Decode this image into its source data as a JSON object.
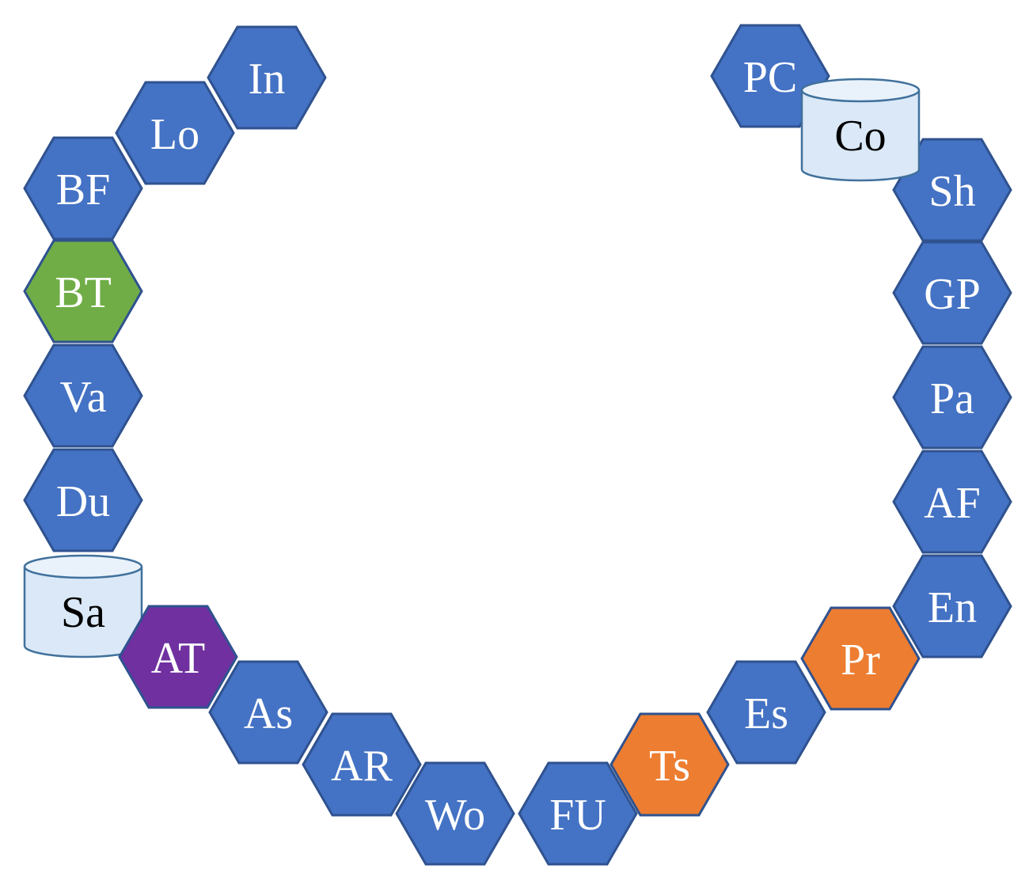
{
  "colors": {
    "blue": "#4472c4",
    "green": "#70ad47",
    "purple": "#7030a0",
    "orange": "#ed7d31",
    "database": "#dae8f7",
    "label_light": "#ffffff",
    "label_dark": "#000000"
  },
  "nodes": [
    {
      "id": "in",
      "label": "In",
      "shape": "hexagon",
      "color": "blue"
    },
    {
      "id": "lo",
      "label": "Lo",
      "shape": "hexagon",
      "color": "blue"
    },
    {
      "id": "bf",
      "label": "BF",
      "shape": "hexagon",
      "color": "blue"
    },
    {
      "id": "bt",
      "label": "BT",
      "shape": "hexagon",
      "color": "green"
    },
    {
      "id": "va",
      "label": "Va",
      "shape": "hexagon",
      "color": "blue"
    },
    {
      "id": "du",
      "label": "Du",
      "shape": "hexagon",
      "color": "blue"
    },
    {
      "id": "sa",
      "label": "Sa",
      "shape": "database",
      "color": "database"
    },
    {
      "id": "at",
      "label": "AT",
      "shape": "hexagon",
      "color": "purple"
    },
    {
      "id": "as",
      "label": "As",
      "shape": "hexagon",
      "color": "blue"
    },
    {
      "id": "ar",
      "label": "AR",
      "shape": "hexagon",
      "color": "blue"
    },
    {
      "id": "wo",
      "label": "Wo",
      "shape": "hexagon",
      "color": "blue"
    },
    {
      "id": "fu",
      "label": "FU",
      "shape": "hexagon",
      "color": "blue"
    },
    {
      "id": "ts",
      "label": "Ts",
      "shape": "hexagon",
      "color": "orange"
    },
    {
      "id": "es",
      "label": "Es",
      "shape": "hexagon",
      "color": "blue"
    },
    {
      "id": "pr",
      "label": "Pr",
      "shape": "hexagon",
      "color": "orange"
    },
    {
      "id": "en",
      "label": "En",
      "shape": "hexagon",
      "color": "blue"
    },
    {
      "id": "af",
      "label": "AF",
      "shape": "hexagon",
      "color": "blue"
    },
    {
      "id": "pa",
      "label": "Pa",
      "shape": "hexagon",
      "color": "blue"
    },
    {
      "id": "gp",
      "label": "GP",
      "shape": "hexagon",
      "color": "blue"
    },
    {
      "id": "sh",
      "label": "Sh",
      "shape": "hexagon",
      "color": "blue"
    },
    {
      "id": "pc",
      "label": "PC",
      "shape": "hexagon",
      "color": "blue"
    },
    {
      "id": "co",
      "label": "Co",
      "shape": "database",
      "color": "database"
    }
  ]
}
